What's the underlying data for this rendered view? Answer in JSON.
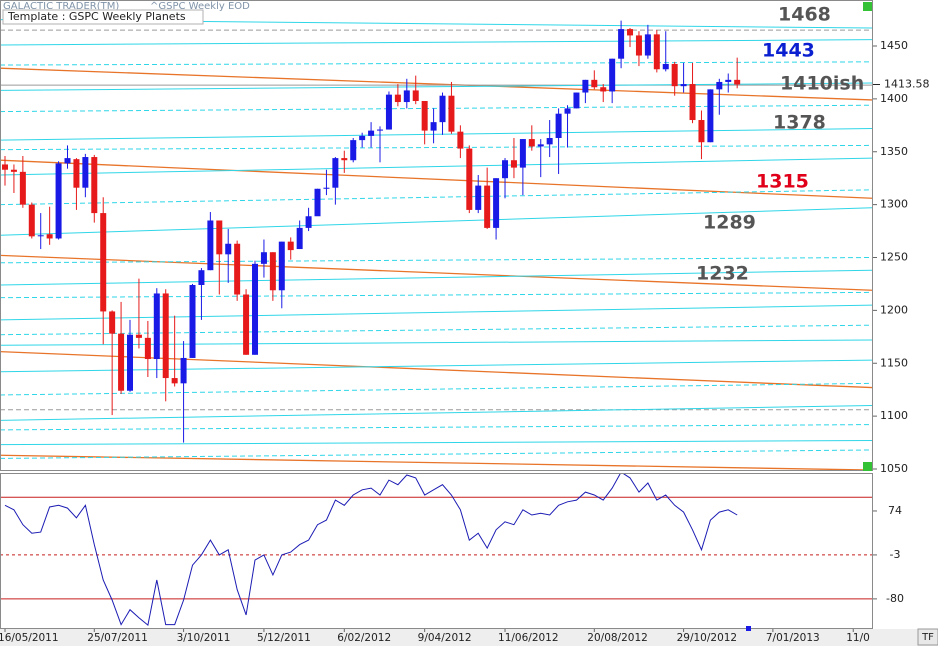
{
  "chart_data": [
    {
      "type": "candlestick",
      "title": "GALACTIC TRADER(TM)",
      "subtitle": "^GSPC Weekly EOD",
      "template": "Template : GSPC Weekly Planets",
      "up_color": "#1a1ae6",
      "down_color": "#e61a1a",
      "xlim": [
        -0.56,
        97.1
      ],
      "ylim": [
        1050,
        1493.5
      ],
      "yticks": [
        1050,
        1100,
        1150,
        1200,
        1250,
        1300,
        1350,
        1400,
        1450
      ],
      "open": [
        1338,
        1333,
        1331,
        1300,
        1271,
        1272,
        1268,
        1339,
        1343,
        1316,
        1345,
        1292,
        1199,
        1178,
        1124,
        1177,
        1174,
        1154,
        1216,
        1136,
        1131,
        1155,
        1224,
        1238,
        1285,
        1253,
        1263,
        1215,
        1158,
        1244,
        1255,
        1219,
        1265,
        1258,
        1278,
        1289,
        1315,
        1316,
        1344,
        1342,
        1361,
        1365,
        1370,
        1371,
        1404,
        1397,
        1408,
        1398,
        1370,
        1378,
        1403,
        1369,
        1353,
        1295,
        1318,
        1278,
        1325,
        1342,
        1335,
        1362,
        1355,
        1357,
        1363,
        1386,
        1391,
        1406,
        1418,
        1411,
        1407,
        1438,
        1466,
        1460,
        1441,
        1461,
        1428,
        1433,
        1412,
        1414,
        1380,
        1359,
        1409,
        1416,
        1418
      ],
      "high": [
        1346,
        1338,
        1346,
        1302,
        1292,
        1298,
        1341,
        1356,
        1344,
        1348,
        1347,
        1307,
        1200,
        1208,
        1191,
        1230,
        1190,
        1221,
        1220,
        1195,
        1171,
        1225,
        1240,
        1293,
        1285,
        1277,
        1266,
        1220,
        1247,
        1267,
        1255,
        1265,
        1269,
        1285,
        1297,
        1315,
        1333,
        1345,
        1351,
        1363,
        1368,
        1378,
        1374,
        1407,
        1414,
        1419,
        1422,
        1398,
        1391,
        1406,
        1416,
        1375,
        1356,
        1328,
        1335,
        1325,
        1344,
        1363,
        1362,
        1375,
        1362,
        1380,
        1391,
        1394,
        1406,
        1418,
        1427,
        1414,
        1438,
        1474,
        1467,
        1464,
        1470,
        1465,
        1464,
        1435,
        1434,
        1434,
        1389,
        1409,
        1419,
        1424,
        1439
      ],
      "low": [
        1318,
        1311,
        1297,
        1268,
        1258,
        1262,
        1267,
        1334,
        1295,
        1307,
        1283,
        1168,
        1101,
        1121,
        1123,
        1164,
        1137,
        1136,
        1114,
        1128,
        1075,
        1155,
        1191,
        1238,
        1215,
        1226,
        1209,
        1158,
        1158,
        1231,
        1209,
        1202,
        1248,
        1258,
        1275,
        1290,
        1309,
        1300,
        1330,
        1340,
        1354,
        1354,
        1340,
        1371,
        1393,
        1391,
        1395,
        1357,
        1358,
        1366,
        1367,
        1344,
        1292,
        1292,
        1277,
        1267,
        1306,
        1325,
        1309,
        1351,
        1326,
        1345,
        1329,
        1354,
        1391,
        1396,
        1409,
        1397,
        1396,
        1429,
        1449,
        1431,
        1438,
        1425,
        1426,
        1403,
        1406,
        1377,
        1343,
        1359,
        1385,
        1406,
        1410
      ],
      "close": [
        1333,
        1331,
        1300,
        1270,
        1271,
        1268,
        1339,
        1344,
        1316,
        1345,
        1292,
        1199,
        1178,
        1124,
        1177,
        1174,
        1154,
        1216,
        1136,
        1131,
        1155,
        1224,
        1238,
        1285,
        1253,
        1263,
        1215,
        1158,
        1244,
        1255,
        1219,
        1265,
        1257,
        1278,
        1289,
        1315,
        1316,
        1344,
        1342,
        1361,
        1365,
        1370,
        1371,
        1404,
        1397,
        1408,
        1398,
        1370,
        1378,
        1403,
        1369,
        1353,
        1295,
        1318,
        1278,
        1325,
        1342,
        1335,
        1362,
        1355,
        1357,
        1363,
        1386,
        1391,
        1406,
        1418,
        1411,
        1407,
        1438,
        1466,
        1460,
        1441,
        1461,
        1428,
        1433,
        1412,
        1414,
        1380,
        1359,
        1409,
        1416,
        1418,
        1413.58
      ],
      "planet_lines": [
        {
          "color": "#e8742a",
          "values": [
            1342,
            1306
          ]
        },
        {
          "color": "#e8742a",
          "values": [
            1429,
            1399
          ]
        },
        {
          "color": "#e8742a",
          "values": [
            1252,
            1219
          ]
        },
        {
          "color": "#e8742a",
          "values": [
            1161,
            1127
          ]
        },
        {
          "color": "#e8742a",
          "values": [
            1063,
            1049
          ]
        },
        {
          "color": "#9a9a9a",
          "values": [
            1465,
            1465
          ],
          "dashed": true
        },
        {
          "color": "#9a9a9a",
          "values": [
            1413,
            1413
          ]
        },
        {
          "color": "#9a9a9a",
          "values": [
            1106,
            1106
          ],
          "dashed": true
        },
        {
          "color": "#2fd6e8",
          "values": [
            1475,
            1467
          ]
        },
        {
          "color": "#2fd6e8",
          "values": [
            1451,
            1456
          ]
        },
        {
          "color": "#2fd6e8",
          "values": [
            1432,
            1435
          ],
          "dashed": true
        },
        {
          "color": "#2fd6e8",
          "values": [
            1408,
            1415
          ]
        },
        {
          "color": "#2fd6e8",
          "values": [
            1388,
            1394
          ],
          "dashed": true
        },
        {
          "color": "#2fd6e8",
          "values": [
            1361,
            1372
          ]
        },
        {
          "color": "#2fd6e8",
          "values": [
            1352,
            1356
          ],
          "dashed": true
        },
        {
          "color": "#2fd6e8",
          "values": [
            1328,
            1344
          ]
        },
        {
          "color": "#2fd6e8",
          "values": [
            1300,
            1314
          ],
          "dashed": true
        },
        {
          "color": "#2fd6e8",
          "values": [
            1271,
            1297
          ]
        },
        {
          "color": "#2fd6e8",
          "values": [
            1245,
            1250
          ],
          "dashed": true
        },
        {
          "color": "#2fd6e8",
          "values": [
            1224,
            1238
          ]
        },
        {
          "color": "#2fd6e8",
          "values": [
            1212,
            1217
          ],
          "dashed": true
        },
        {
          "color": "#2fd6e8",
          "values": [
            1191,
            1205
          ]
        },
        {
          "color": "#2fd6e8",
          "values": [
            1177,
            1186
          ],
          "dashed": true
        },
        {
          "color": "#2fd6e8",
          "values": [
            1167,
            1172
          ]
        },
        {
          "color": "#2fd6e8",
          "values": [
            1142,
            1153
          ]
        },
        {
          "color": "#2fd6e8",
          "values": [
            1120,
            1131
          ],
          "dashed": true
        },
        {
          "color": "#2fd6e8",
          "values": [
            1096,
            1110
          ]
        },
        {
          "color": "#2fd6e8",
          "values": [
            1087,
            1092
          ],
          "dashed": true
        },
        {
          "color": "#2fd6e8",
          "values": [
            1073,
            1077
          ]
        },
        {
          "color": "#2fd6e8",
          "values": [
            1060,
            1068
          ],
          "dashed": true
        }
      ],
      "annotations": [
        {
          "text": "1468",
          "color": "#555555"
        },
        {
          "text": "1443",
          "color": "#0a1fd0"
        },
        {
          "text": "1410ish",
          "color": "#555555"
        },
        {
          "text": "1378",
          "color": "#555555"
        },
        {
          "text": "1315",
          "color": "#e0001a"
        },
        {
          "text": "1289",
          "color": "#555555"
        },
        {
          "text": "1232",
          "color": "#555555"
        }
      ]
    },
    {
      "type": "line",
      "color": "#1c1cb4",
      "level_color": "#c81e1e",
      "xlim": [
        -0.56,
        97.1
      ],
      "ylim": [
        -131,
        140.5
      ],
      "yticks": [
        74,
        -3,
        -80
      ],
      "levels": [
        98,
        -3,
        -80
      ],
      "values": [
        84,
        76,
        50,
        35,
        37,
        81,
        84,
        79,
        62,
        84,
        15,
        -47,
        -82,
        -125,
        -99,
        -113,
        -126,
        -47,
        -125,
        -125,
        -82,
        -21,
        -3,
        23,
        -3,
        6,
        -64,
        -108,
        -12,
        -3,
        -38,
        -3,
        2,
        15,
        23,
        50,
        58,
        93,
        84,
        102,
        111,
        114,
        102,
        128,
        120,
        137,
        132,
        102,
        111,
        120,
        102,
        76,
        23,
        35,
        9,
        41,
        55,
        50,
        76,
        67,
        70,
        67,
        84,
        90,
        93,
        107,
        102,
        93,
        114,
        142,
        132,
        107,
        123,
        93,
        102,
        84,
        72,
        41,
        6,
        58,
        72,
        76,
        67
      ],
      "xticks": [
        {
          "value": 0,
          "label": "16/05/2011"
        },
        {
          "value": 10,
          "label": "25/07/2011"
        },
        {
          "value": 20,
          "label": "3/10/2011"
        },
        {
          "value": 29,
          "label": "5/12/2011"
        },
        {
          "value": 38,
          "label": "6/02/2012"
        },
        {
          "value": 47,
          "label": "9/04/2012"
        },
        {
          "value": 56,
          "label": "11/06/2012"
        },
        {
          "value": 66,
          "label": "20/08/2012"
        },
        {
          "value": 76,
          "label": "29/10/2012"
        },
        {
          "value": 86,
          "label": "7/01/2013"
        },
        {
          "value": 95,
          "label": "11/0"
        }
      ],
      "corner_label": "TF"
    }
  ]
}
